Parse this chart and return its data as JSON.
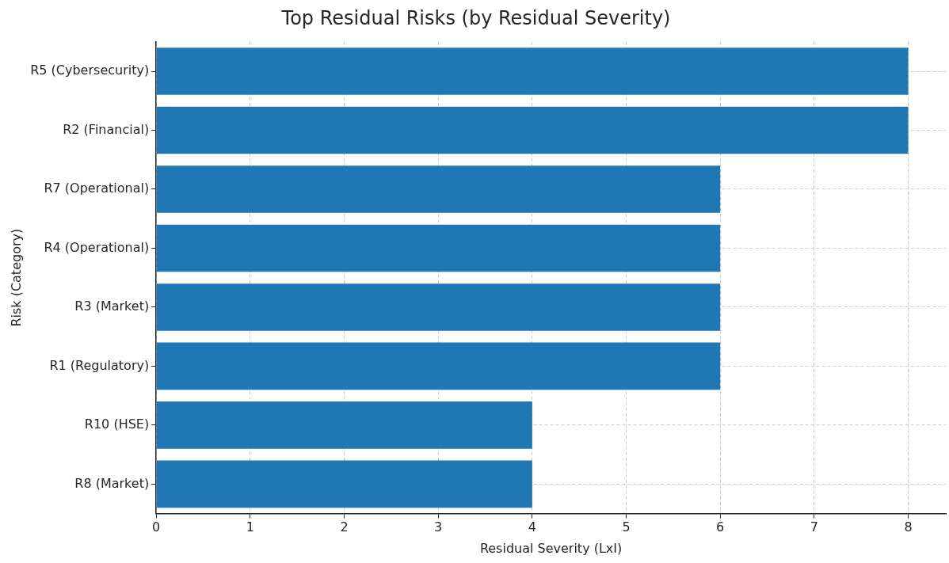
{
  "chart_data": {
    "type": "bar",
    "orientation": "horizontal",
    "title": "Top Residual Risks (by Residual Severity)",
    "xlabel": "Residual Severity (LxI)",
    "ylabel": "Risk (Category)",
    "categories": [
      "R5 (Cybersecurity)",
      "R2 (Financial)",
      "R7 (Operational)",
      "R4 (Operational)",
      "R3 (Market)",
      "R1 (Regulatory)",
      "R10 (HSE)",
      "R8 (Market)"
    ],
    "values": [
      8,
      8,
      6,
      6,
      6,
      6,
      4,
      4
    ],
    "color": "#1f77b4",
    "xlim": [
      0,
      8.4
    ],
    "xticks": [
      0,
      1,
      2,
      3,
      4,
      5,
      6,
      7,
      8
    ],
    "grid": true,
    "legend": false
  }
}
